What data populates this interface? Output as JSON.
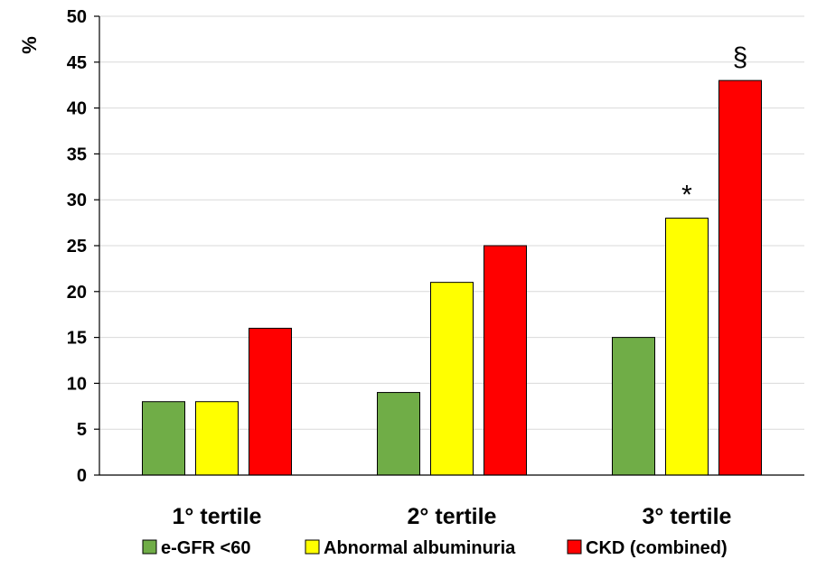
{
  "chart_data": {
    "type": "bar",
    "ylabel": "%",
    "ylim": [
      0,
      50
    ],
    "yticks": [
      0,
      5,
      10,
      15,
      20,
      25,
      30,
      35,
      40,
      45,
      50
    ],
    "grid": true,
    "legend_position": "bottom",
    "categories": [
      "1° tertile",
      "2° tertile",
      "3° tertile"
    ],
    "series": [
      {
        "name": "e-GFR <60",
        "color": "#70ad47",
        "values": [
          8,
          9,
          15
        ]
      },
      {
        "name": "Abnormal albuminuria",
        "color": "#ffff00",
        "values": [
          8,
          21,
          28
        ]
      },
      {
        "name": "CKD (combined)",
        "color": "#ff0000",
        "values": [
          16,
          25,
          43
        ]
      }
    ],
    "annotations": [
      {
        "text": "*",
        "category_index": 2,
        "series_index": 1
      },
      {
        "text": "§",
        "category_index": 2,
        "series_index": 2
      }
    ]
  }
}
